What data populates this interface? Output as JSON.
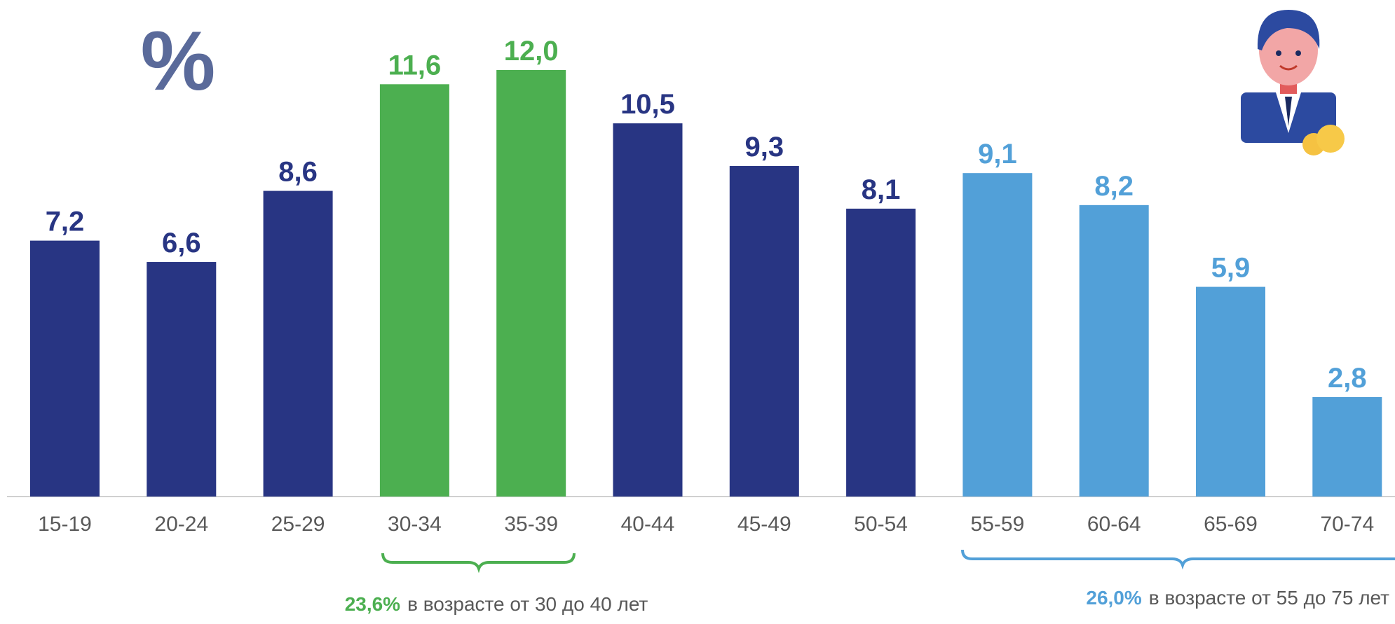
{
  "chart_data": {
    "type": "bar",
    "unit": "%",
    "categories": [
      "15-19",
      "20-24",
      "25-29",
      "30-34",
      "35-39",
      "40-44",
      "45-49",
      "50-54",
      "55-59",
      "60-64",
      "65-69",
      "70-74"
    ],
    "values": [
      7.2,
      6.6,
      8.6,
      11.6,
      12.0,
      10.5,
      9.3,
      8.1,
      9.1,
      8.2,
      5.9,
      2.8
    ],
    "value_labels": [
      "7,2",
      "6,6",
      "8,6",
      "11,6",
      "12,0",
      "10,5",
      "9,3",
      "8,1",
      "9,1",
      "8,2",
      "5,9",
      "2,8"
    ],
    "colors": [
      "#283583",
      "#283583",
      "#283583",
      "#4caf50",
      "#4caf50",
      "#283583",
      "#283583",
      "#283583",
      "#52a0d8",
      "#52a0d8",
      "#52a0d8",
      "#52a0d8"
    ],
    "ylim": [
      0,
      12
    ],
    "annotations": [
      {
        "value": "23,6%",
        "text": "в возрасте  от 30 до 40 лет",
        "color": "#4caf50"
      },
      {
        "value": "26,0%",
        "text": "в возрасте  от  55 до 75 лет",
        "color": "#52a0d8"
      }
    ]
  }
}
